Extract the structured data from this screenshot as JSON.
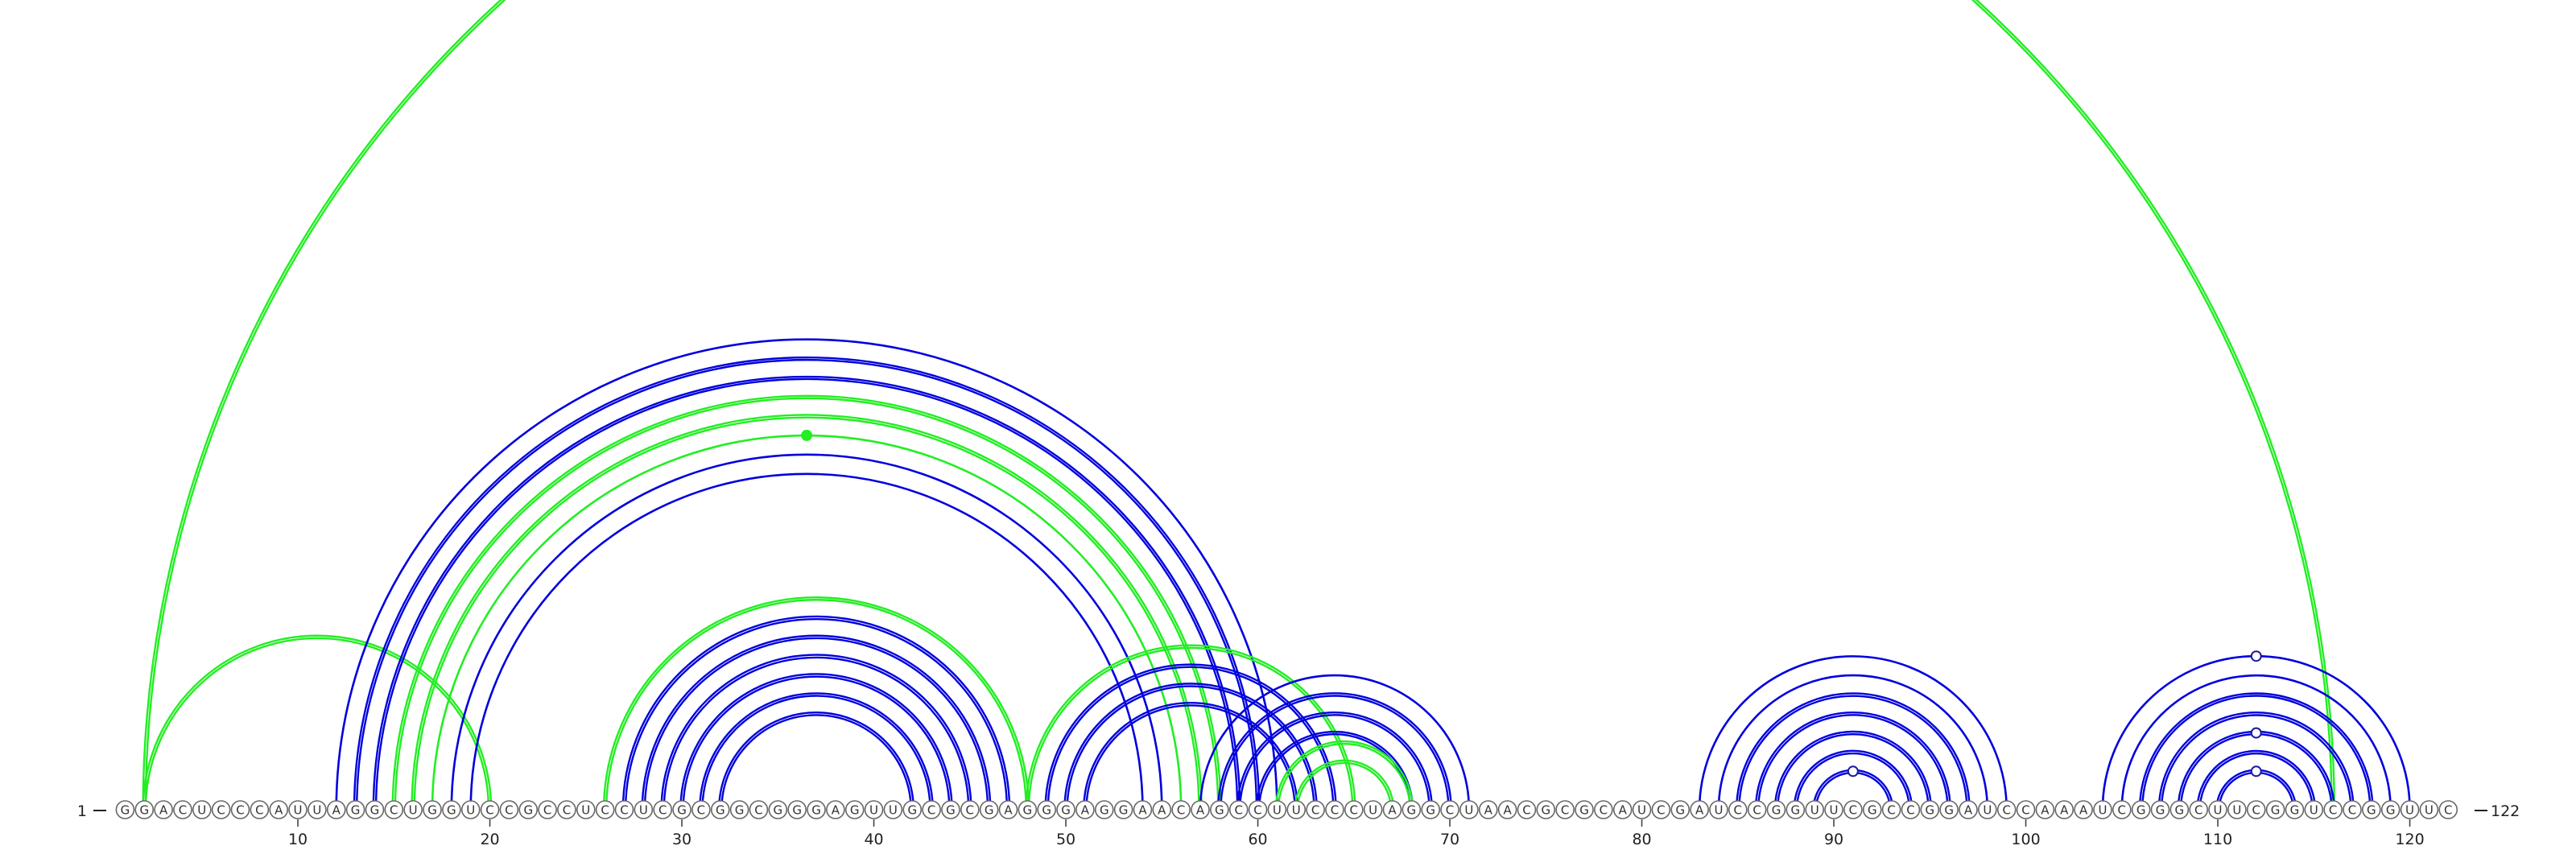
{
  "diagram": {
    "sequence": "GGACUCCCAUUAGGCUGGUCCGCCUCCUCGCGGCGGGAGUUGCGCGAGGGAGGAACAGCCUUCCCUAGGCUAACGCGCAUCGAUCCGGUUCGCCGGAUCCAAAUCGGGCUUCGGUCCGGUUC",
    "start_label": "1",
    "end_label": "122",
    "ticks": [
      "10",
      "20",
      "30",
      "40",
      "50",
      "60",
      "70",
      "80",
      "90",
      "100",
      "110",
      "120"
    ],
    "colors": {
      "blue": "#0000dd",
      "green": "#22ee22",
      "marker_blue": "#1a1aa0",
      "circle_stroke": "#666666"
    },
    "arc_groups": [
      {
        "color": "green",
        "double": true,
        "pairs": [
          [
            2,
            116
          ]
        ]
      },
      {
        "color": "green",
        "double": true,
        "pairs": [
          [
            2,
            20
          ]
        ]
      },
      {
        "color": "blue",
        "double": false,
        "pairs": [
          [
            12,
            61
          ]
        ]
      },
      {
        "color": "blue",
        "double": true,
        "pairs": [
          [
            13,
            60
          ],
          [
            14,
            59
          ]
        ]
      },
      {
        "color": "green",
        "double": true,
        "pairs": [
          [
            15,
            58
          ],
          [
            16,
            57
          ]
        ]
      },
      {
        "color": "green",
        "double": false,
        "pairs": [
          [
            17,
            56
          ]
        ]
      },
      {
        "color": "blue",
        "double": false,
        "pairs": [
          [
            18,
            55
          ]
        ]
      },
      {
        "color": "blue",
        "double": false,
        "pairs": [
          [
            19,
            54
          ]
        ]
      },
      {
        "color": "green",
        "double": true,
        "pairs": [
          [
            26,
            48
          ]
        ]
      },
      {
        "color": "blue",
        "double": true,
        "pairs": [
          [
            27,
            47
          ],
          [
            28,
            46
          ],
          [
            29,
            45
          ],
          [
            30,
            44
          ],
          [
            31,
            43
          ],
          [
            32,
            42
          ]
        ]
      },
      {
        "color": "green",
        "double": true,
        "pairs": [
          [
            48,
            65
          ]
        ]
      },
      {
        "color": "blue",
        "double": true,
        "pairs": [
          [
            49,
            64
          ],
          [
            50,
            63
          ],
          [
            51,
            62
          ]
        ]
      },
      {
        "color": "blue",
        "double": true,
        "pairs": [
          [
            58,
            70
          ],
          [
            59,
            69
          ],
          [
            60,
            68
          ]
        ]
      },
      {
        "color": "blue",
        "double": false,
        "pairs": [
          [
            57,
            71
          ]
        ]
      },
      {
        "color": "green",
        "double": true,
        "pairs": [
          [
            61,
            68
          ],
          [
            62,
            67
          ]
        ]
      },
      {
        "color": "blue",
        "double": false,
        "pairs": [
          [
            83,
            99
          ],
          [
            84,
            98
          ]
        ]
      },
      {
        "color": "blue",
        "double": true,
        "pairs": [
          [
            85,
            97
          ],
          [
            86,
            96
          ],
          [
            87,
            95
          ],
          [
            88,
            94
          ],
          [
            89,
            93
          ]
        ]
      },
      {
        "color": "blue",
        "double": false,
        "pairs": [
          [
            104,
            120
          ],
          [
            105,
            119
          ]
        ]
      },
      {
        "color": "blue",
        "double": true,
        "pairs": [
          [
            106,
            118
          ],
          [
            107,
            117
          ],
          [
            108,
            116
          ],
          [
            109,
            115
          ],
          [
            110,
            114
          ]
        ]
      }
    ],
    "markers": [
      {
        "kind": "filled",
        "color": "green",
        "pair": [
          17,
          56
        ]
      },
      {
        "kind": "open",
        "color": "marker_blue",
        "pair": [
          89,
          93
        ]
      },
      {
        "kind": "open",
        "color": "marker_blue",
        "pair": [
          104,
          120
        ]
      },
      {
        "kind": "open",
        "color": "marker_blue",
        "pair": [
          108,
          116
        ]
      },
      {
        "kind": "open",
        "color": "marker_blue",
        "pair": [
          110,
          114
        ]
      }
    ]
  }
}
